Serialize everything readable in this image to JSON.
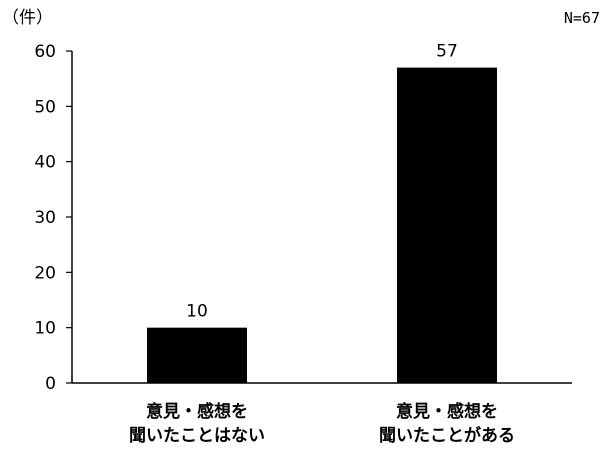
{
  "chart_data": {
    "type": "bar",
    "unit_label": "（件）",
    "n_label": "N=67",
    "categories": [
      [
        "意見・感想を",
        "聞いたことはない"
      ],
      [
        "意見・感想を",
        "聞いたことがある"
      ]
    ],
    "values": [
      10,
      57
    ],
    "data_labels": [
      "10",
      "57"
    ],
    "ylim": [
      0,
      60
    ],
    "yticks": [
      0,
      10,
      20,
      30,
      40,
      50,
      60
    ],
    "grid": false,
    "bar_color": "#000000"
  }
}
